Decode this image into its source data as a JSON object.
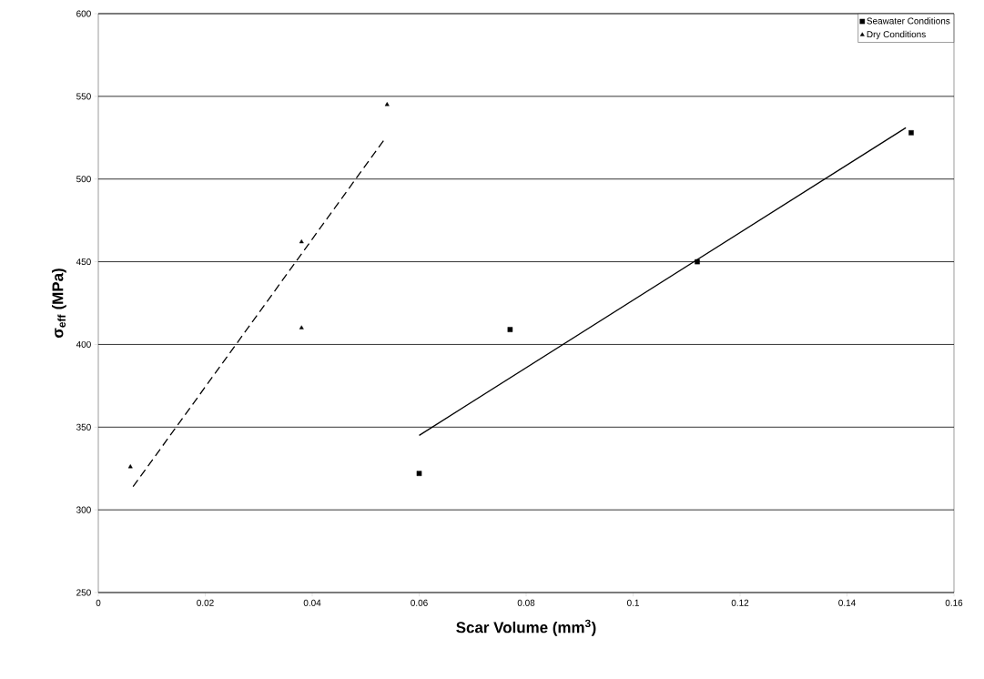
{
  "chart_data": {
    "type": "scatter",
    "xlabel": "Scar Volume (mm$^{3}$)",
    "ylabel": "σ$_{eff}$ (MPa)",
    "xlim": [
      0,
      0.16
    ],
    "xticks": [
      0,
      0.02,
      0.04,
      0.06,
      0.08,
      0.1,
      0.12,
      0.14,
      0.16
    ],
    "ylim": [
      250,
      600
    ],
    "yticks": [
      250,
      300,
      350,
      400,
      450,
      500,
      550,
      600
    ],
    "grid": "y",
    "legend": "top right",
    "series": [
      {
        "name": "Seawater Conditions",
        "color": "#000000",
        "marker": "square",
        "x": [
          0.06,
          0.077,
          0.112,
          0.152
        ],
        "values": [
          322,
          409,
          450,
          528
        ]
      },
      {
        "name": "Dry Conditions",
        "color": "#000000",
        "marker": "triangle",
        "x": [
          0.006,
          0.038,
          0.038,
          0.054
        ],
        "values": [
          326,
          410,
          462,
          545
        ]
      },
      {
        "type": "line",
        "color": "#000000",
        "marker": "none",
        "line_style": "solid",
        "x": [
          0.06,
          0.151
        ],
        "values": [
          345,
          531
        ]
      },
      {
        "type": "line",
        "color": "#000000",
        "marker": "none",
        "line_style": "dashed",
        "x": [
          0.0065,
          0.0535
        ],
        "values": [
          314,
          524
        ]
      }
    ]
  }
}
